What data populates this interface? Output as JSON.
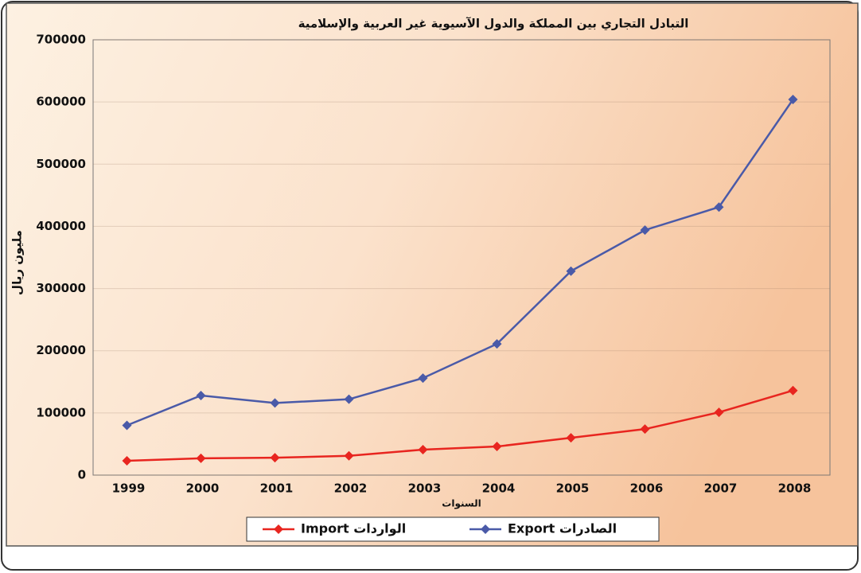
{
  "chart_data": {
    "type": "line",
    "title": "التبادل التجاري بين المملكة والدول الآسيوية غير العربية والإسلامية",
    "y_label": "مليون ريال",
    "x_label": "السنوات",
    "categories": [
      "1999",
      "2000",
      "2001",
      "2002",
      "2003",
      "2004",
      "2005",
      "2006",
      "2007",
      "2008"
    ],
    "series": [
      {
        "name": "Import الواردات",
        "color": "#e8251f",
        "values": [
          23000,
          27000,
          28000,
          31000,
          41000,
          46000,
          60000,
          74000,
          101000,
          136000
        ]
      },
      {
        "name": "Export الصادرات",
        "color": "#4a5aa8",
        "values": [
          80000,
          128000,
          116000,
          122000,
          156000,
          211000,
          328000,
          394000,
          431000,
          604000
        ]
      }
    ],
    "ylim": [
      0,
      700000
    ],
    "yticks": [
      0,
      100000,
      200000,
      300000,
      400000,
      500000,
      600000,
      700000
    ],
    "grid": true,
    "legend": "bottom"
  }
}
